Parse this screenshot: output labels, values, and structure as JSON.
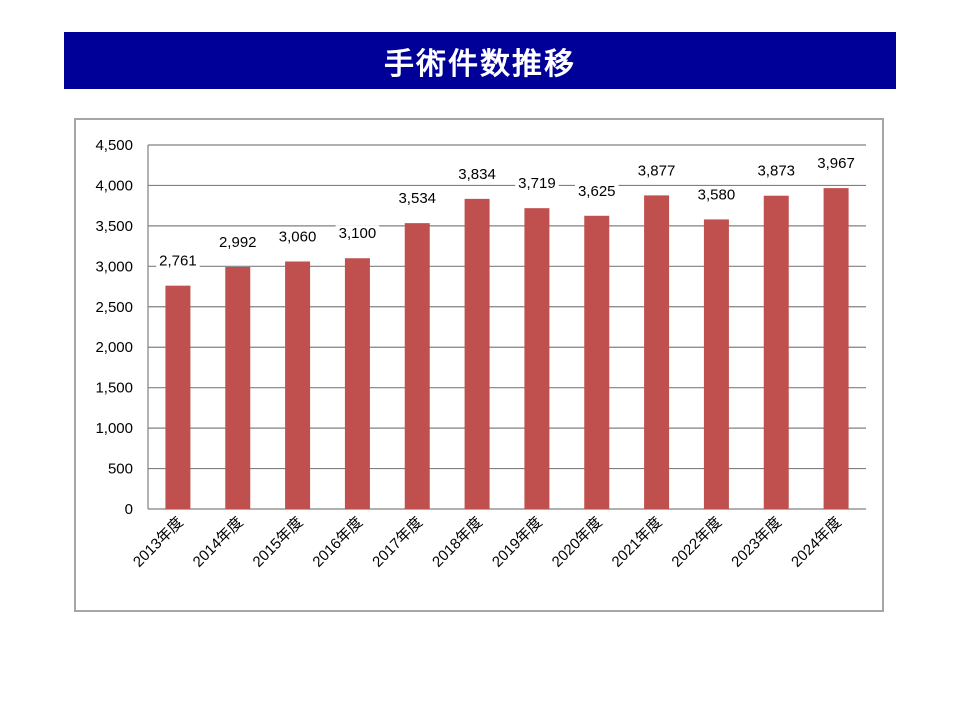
{
  "title": "手術件数推移",
  "colors": {
    "banner": "#000099",
    "bar": "#c0504d",
    "grid": "#808080"
  },
  "chart_data": {
    "type": "bar",
    "title": "",
    "xlabel": "",
    "ylabel": "",
    "grid": true,
    "ylim": [
      0,
      4500
    ],
    "yticks": [
      0,
      500,
      1000,
      1500,
      2000,
      2500,
      3000,
      3500,
      4000,
      4500
    ],
    "ytick_labels": [
      "0",
      "500",
      "1,000",
      "1,500",
      "2,000",
      "2,500",
      "3,000",
      "3,500",
      "4,000",
      "4,500"
    ],
    "categories": [
      "2013年度",
      "2014年度",
      "2015年度",
      "2016年度",
      "2017年度",
      "2018年度",
      "2019年度",
      "2020年度",
      "2021年度",
      "2022年度",
      "2023年度",
      "2024年度"
    ],
    "values": [
      2761,
      2992,
      3060,
      3100,
      3534,
      3834,
      3719,
      3625,
      3877,
      3580,
      3873,
      3967
    ],
    "value_labels": [
      "2,761",
      "2,992",
      "3,060",
      "3,100",
      "3,534",
      "3,834",
      "3,719",
      "3,625",
      "3,877",
      "3,580",
      "3,873",
      "3,967"
    ]
  }
}
